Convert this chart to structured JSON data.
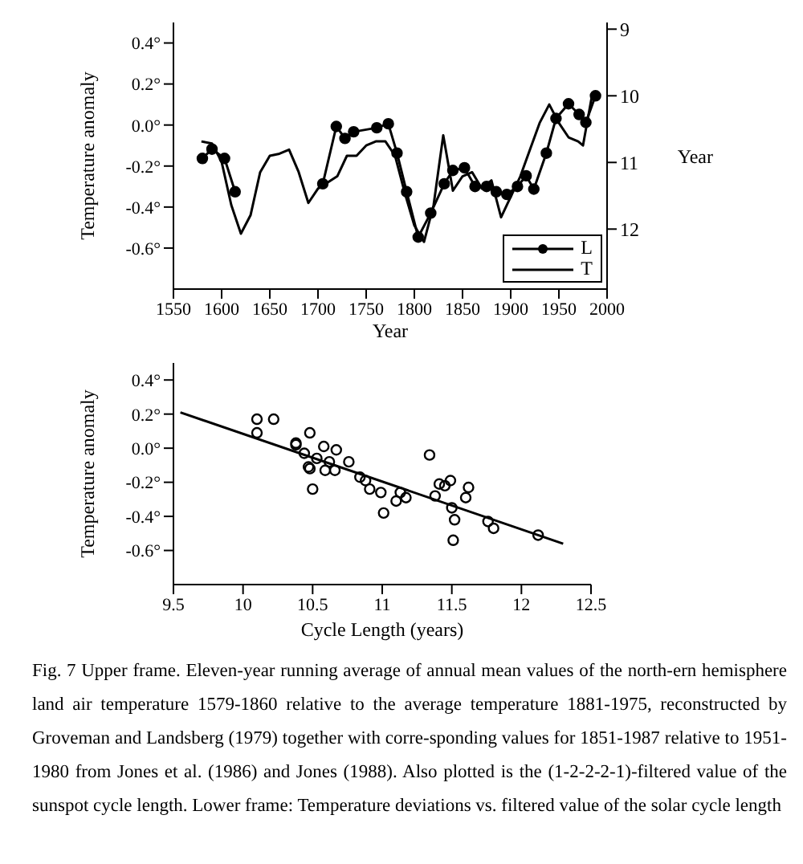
{
  "chart_data": [
    {
      "type": "line",
      "xlabel": "Year",
      "ylabel": "Temperature anomaly",
      "y2label": "Year",
      "xlim": [
        1550,
        2000
      ],
      "xticks": [
        1550,
        1600,
        1650,
        1700,
        1750,
        1800,
        1850,
        1900,
        1950,
        2000
      ],
      "ylim": [
        -0.8,
        0.5
      ],
      "yticks": [
        {
          "value": -0.6,
          "label": "-0.6°"
        },
        {
          "value": -0.4,
          "label": "-0.4°"
        },
        {
          "value": -0.2,
          "label": "-0.2°"
        },
        {
          "value": 0,
          "label": "0.0°"
        },
        {
          "value": 0.2,
          "label": "0.2°"
        },
        {
          "value": 0.4,
          "label": "0.4°"
        }
      ],
      "y2lim": [
        12.9,
        8.9
      ],
      "y2ticks": [
        9,
        10,
        11,
        12
      ],
      "legend": "bottom right",
      "series": [
        {
          "name": "L",
          "color": "#000000",
          "axis": "y2",
          "marker": "circle",
          "x": [
            1580,
            1590,
            1603,
            1614,
            1660,
            1705,
            1719,
            1728,
            1737,
            1761,
            1773,
            1782,
            1792,
            1804,
            1817,
            1831,
            1840,
            1852,
            1863,
            1875,
            1885,
            1896,
            1907,
            1916,
            1924,
            1937,
            1947,
            1960,
            1971,
            1978,
            1988
          ],
          "values": [
            10.94,
            10.8,
            10.94,
            11.44,
            null,
            11.32,
            10.46,
            10.64,
            10.54,
            10.48,
            10.42,
            10.86,
            11.44,
            12.12,
            11.76,
            11.32,
            11.12,
            11.08,
            11.36,
            11.36,
            11.44,
            11.48,
            11.36,
            11.2,
            11.4,
            10.86,
            10.34,
            10.12,
            10.28,
            10.4,
            10.0
          ]
        },
        {
          "name": "T",
          "color": "#000000",
          "marker": "none",
          "x": [
            1579,
            1590,
            1600,
            1610,
            1620,
            1630,
            1640,
            1650,
            1660,
            1670,
            1680,
            1690,
            1700,
            1710,
            1720,
            1730,
            1740,
            1750,
            1760,
            1770,
            1780,
            1790,
            1800,
            1810,
            1820,
            1830,
            1840,
            1850,
            1860,
            1870,
            1880,
            1890,
            1900,
            1910,
            1920,
            1930,
            1940,
            1950,
            1960,
            1970,
            1975,
            1985
          ],
          "values": [
            -0.08,
            -0.09,
            -0.18,
            -0.39,
            -0.53,
            -0.44,
            -0.23,
            -0.15,
            -0.14,
            -0.12,
            -0.23,
            -0.38,
            -0.31,
            -0.28,
            -0.25,
            -0.15,
            -0.15,
            -0.1,
            -0.08,
            -0.08,
            -0.15,
            -0.33,
            -0.49,
            -0.57,
            -0.39,
            -0.05,
            -0.32,
            -0.25,
            -0.23,
            -0.31,
            -0.27,
            -0.45,
            -0.35,
            -0.25,
            -0.12,
            0.01,
            0.1,
            0.01,
            -0.06,
            -0.08,
            -0.1,
            0.16
          ]
        }
      ]
    },
    {
      "type": "scatter",
      "xlabel": "Cycle Length (years)",
      "ylabel": "Temperature anomaly",
      "xlim": [
        9.5,
        12.5
      ],
      "xticks": [
        9.5,
        10,
        10.5,
        11,
        11.5,
        12,
        12.5
      ],
      "ylim": [
        -0.8,
        0.5
      ],
      "yticks": [
        {
          "value": -0.6,
          "label": "-0.6°"
        },
        {
          "value": -0.4,
          "label": "-0.4°"
        },
        {
          "value": -0.2,
          "label": "-0.2°"
        },
        {
          "value": 0,
          "label": "0.0°"
        },
        {
          "value": 0.2,
          "label": "0.2°"
        },
        {
          "value": 0.4,
          "label": "0.4°"
        }
      ],
      "marker": "circle",
      "series": [
        {
          "color": "#000000",
          "x": [
            10.1,
            10.22,
            10.1,
            10.38,
            10.38,
            10.44,
            10.48,
            10.47,
            10.48,
            10.5,
            10.53,
            10.58,
            10.59,
            10.62,
            10.66,
            10.67,
            10.76,
            10.84,
            10.88,
            10.91,
            10.99,
            11.01,
            11.1,
            11.13,
            11.17,
            11.34,
            11.38,
            11.41,
            11.45,
            11.49,
            11.5,
            11.52,
            11.51,
            11.6,
            11.62,
            11.76,
            11.8,
            12.12
          ],
          "values": [
            0.17,
            0.17,
            0.09,
            0.03,
            0.02,
            -0.03,
            0.09,
            -0.11,
            -0.12,
            -0.24,
            -0.06,
            0.01,
            -0.13,
            -0.08,
            -0.13,
            -0.01,
            -0.08,
            -0.17,
            -0.19,
            -0.24,
            -0.26,
            -0.38,
            -0.31,
            -0.26,
            -0.29,
            -0.04,
            -0.28,
            -0.21,
            -0.22,
            -0.19,
            -0.35,
            -0.42,
            -0.54,
            -0.29,
            -0.23,
            -0.43,
            -0.47,
            -0.51
          ]
        },
        {
          "type": "line",
          "color": "#000000",
          "marker": "none",
          "x": [
            9.55,
            12.3
          ],
          "values": [
            0.21,
            -0.56
          ]
        }
      ],
      "annotations": [
        "Fig.  7  Upper frame. Eleven-year running average of annual mean values of the north-ern hemisphere land air temperature 1579-1860 relative to the average temperature 1881-1975, reconstructed by Groveman and Landsberg (1979) together with corre-sponding values for 1851-1987 relative to 1951-1980 from Jones et al. (1986) and Jones (1988). Also plotted is the (1-2-2-2-1)-filtered value of the sunspot cycle length. Lower frame: Temperature deviations vs. filtered value of the solar cycle length"
      ]
    }
  ]
}
